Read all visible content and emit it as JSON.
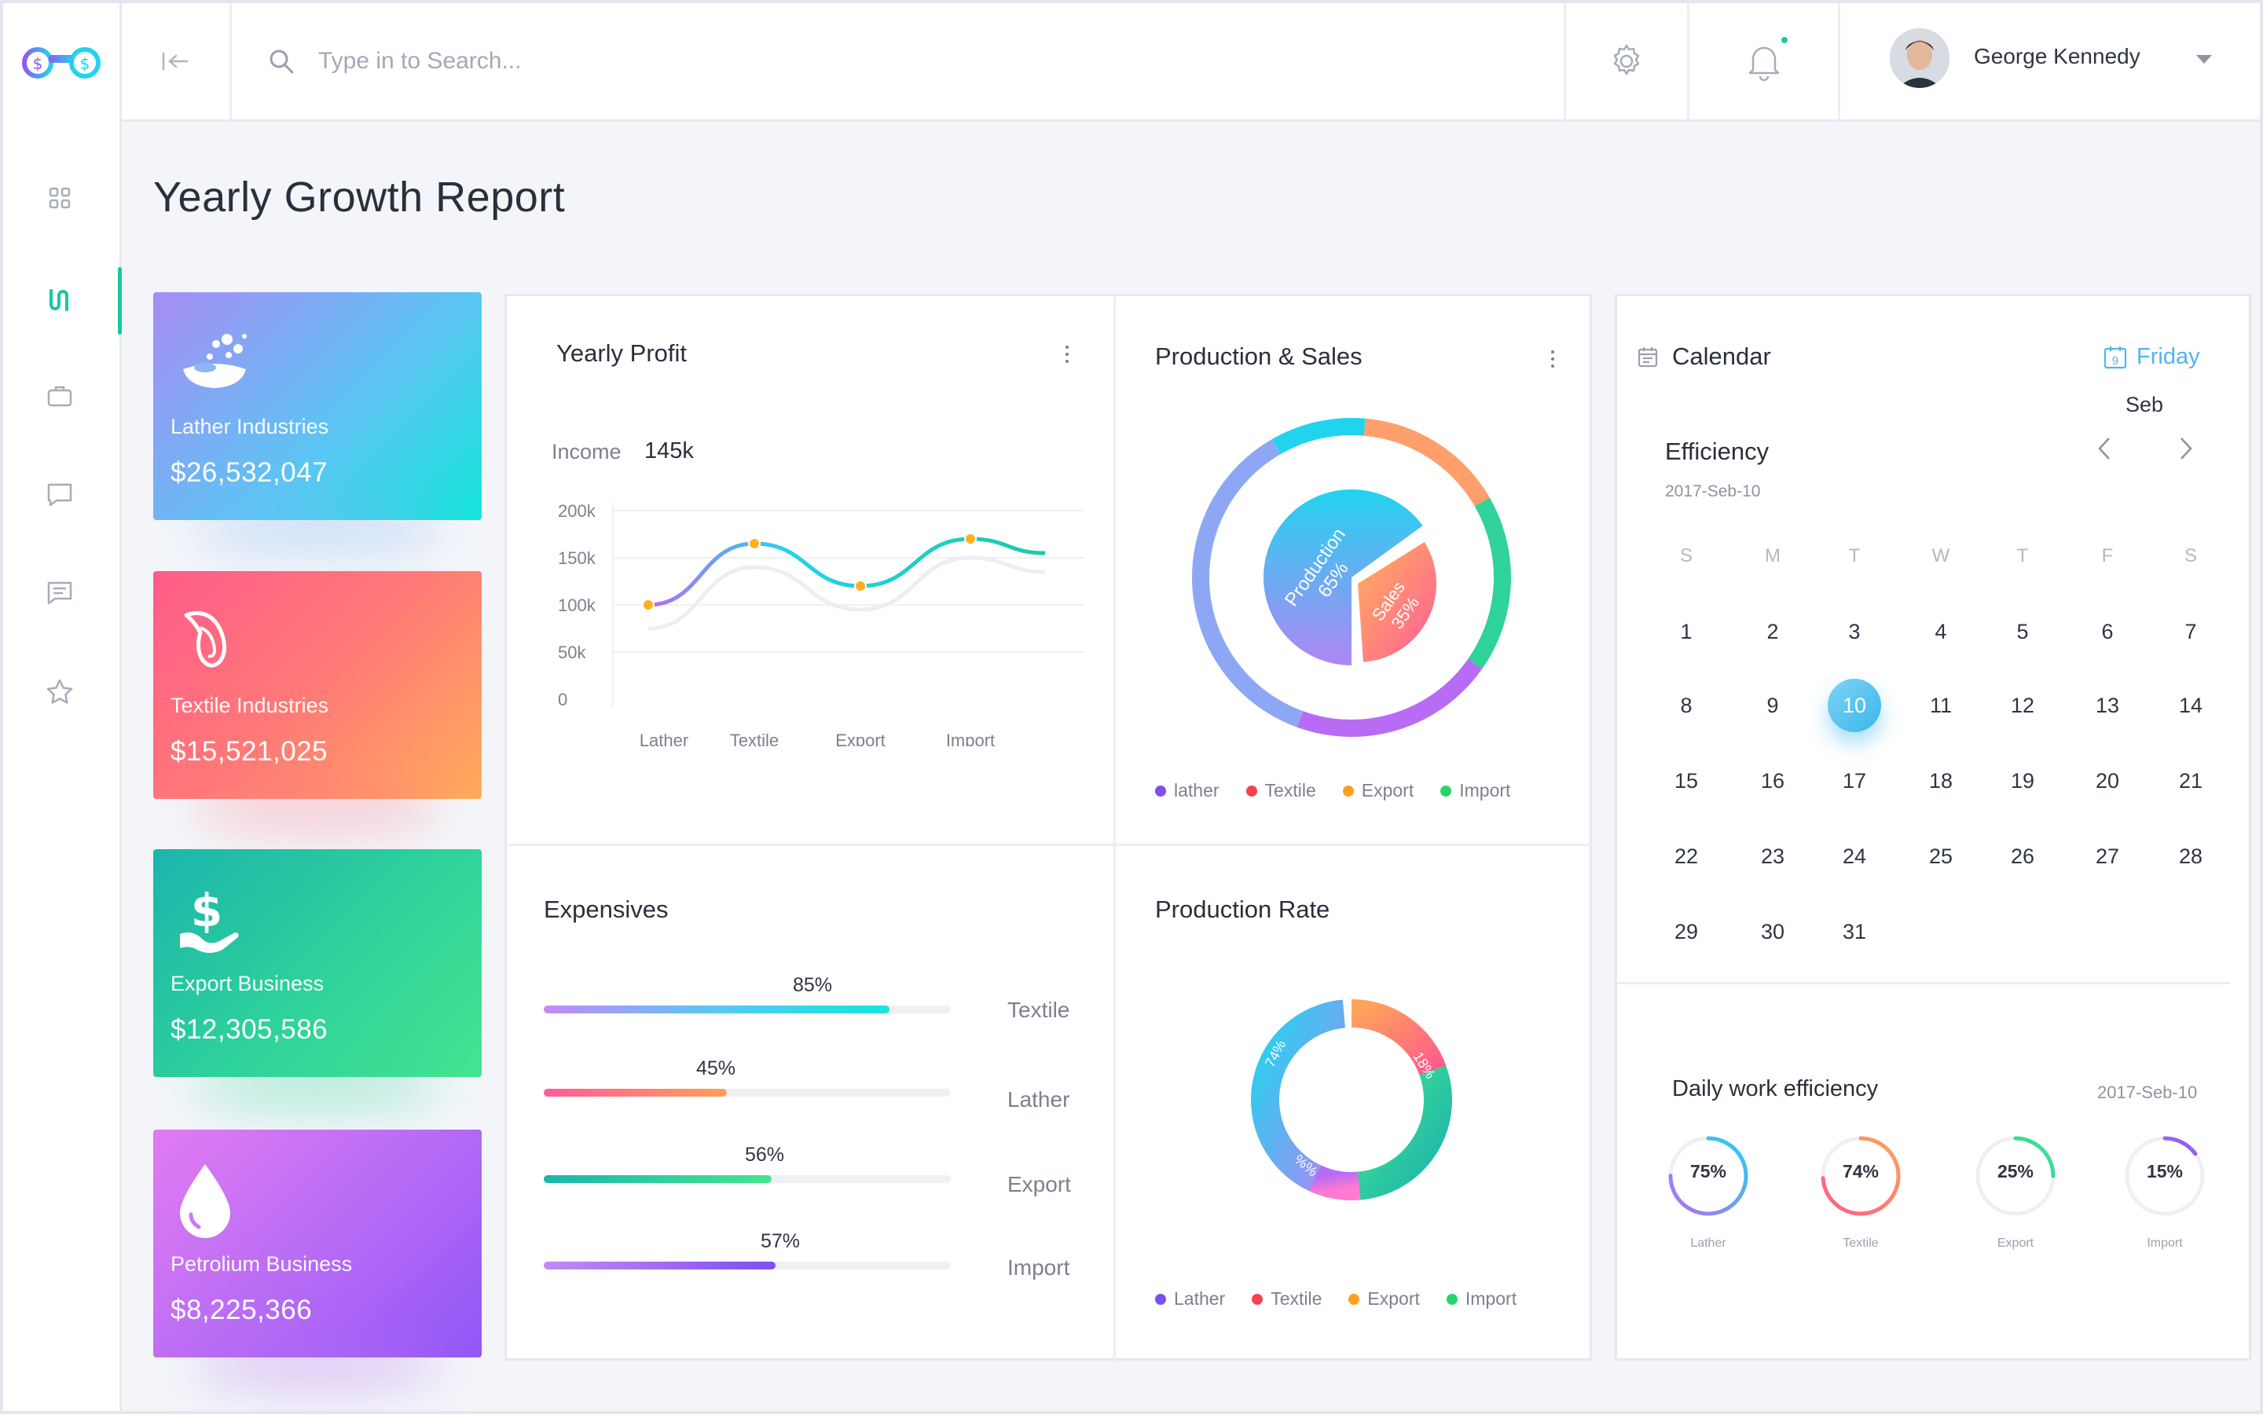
{
  "search": {
    "placeholder": "Type in to Search..."
  },
  "user": {
    "name": "George Kennedy"
  },
  "page": {
    "title": "Yearly Growth Report"
  },
  "stat_cards": [
    {
      "label": "Lather Industries",
      "value": "$26,532,047"
    },
    {
      "label": "Textile Industries",
      "value": "$15,521,025"
    },
    {
      "label": "Export Business",
      "value": "$12,305,586"
    },
    {
      "label": "Petrolium Business",
      "value": "$8,225,366"
    }
  ],
  "yearly_profit": {
    "title": "Yearly Profit",
    "income_label": "Income",
    "income_value": "145k"
  },
  "production_sales": {
    "title": "Production & Sales",
    "production_label": "Production",
    "production_pct": "65%",
    "sales_label": "Sales",
    "sales_pct": "35%",
    "legend": [
      "lather",
      "Textile",
      "Export",
      "Import"
    ]
  },
  "expensives": {
    "title": "Expensives",
    "rows": [
      {
        "label": "Textile",
        "pct": "85%"
      },
      {
        "label": "Lather",
        "pct": "45%"
      },
      {
        "label": "Export",
        "pct": "56%"
      },
      {
        "label": "Import",
        "pct": "57%"
      }
    ]
  },
  "production_rate": {
    "title": "Production Rate",
    "labels": [
      "74%",
      "18%",
      "19%",
      "%%"
    ],
    "legend": [
      "Lather",
      "Textile",
      "Export",
      "Import"
    ]
  },
  "calendar": {
    "title": "Calendar",
    "day_name": "Friday",
    "day_icon_num": "9",
    "month_short": "Seb",
    "efficiency_title": "Efficiency",
    "efficiency_date": "2017-Seb-10",
    "weekdays": [
      "S",
      "M",
      "T",
      "W",
      "T",
      "F",
      "S"
    ],
    "weeks": [
      [
        "1",
        "2",
        "3",
        "4",
        "5",
        "6",
        "7"
      ],
      [
        "8",
        "9",
        "10",
        "11",
        "12",
        "13",
        "14"
      ],
      [
        "15",
        "16",
        "17",
        "18",
        "19",
        "20",
        "21"
      ],
      [
        "22",
        "23",
        "24",
        "25",
        "26",
        "27",
        "28"
      ],
      [
        "29",
        "30",
        "31"
      ]
    ],
    "selected_day": "10"
  },
  "daily_efficiency": {
    "title": "Daily work efficiency",
    "date": "2017-Seb-10",
    "items": [
      {
        "pct": "75%",
        "label": "Lather"
      },
      {
        "pct": "74%",
        "label": "Textile"
      },
      {
        "pct": "25%",
        "label": "Export"
      },
      {
        "pct": "15%",
        "label": "Import"
      }
    ]
  },
  "colors": {
    "accent": "#19c8a0",
    "lather": "#7b4ff0",
    "textile": "#f5424e",
    "export": "#ff9f1c",
    "import": "#27d46b"
  },
  "chart_data": [
    {
      "type": "line",
      "title": "Yearly Profit",
      "categories": [
        "Lather",
        "Textile",
        "Export",
        "Import"
      ],
      "ylim": [
        0,
        200000
      ],
      "yticks": [
        "200k",
        "150k",
        "100k",
        "50k",
        "0"
      ],
      "series": [
        {
          "values": [
            100000,
            165000,
            120000,
            170000
          ]
        },
        {
          "values": [
            75000,
            140000,
            95000,
            150000
          ]
        }
      ]
    },
    {
      "type": "pie",
      "title": "Production & Sales",
      "values": [
        65,
        35
      ],
      "labels": [
        "Production",
        "Sales"
      ]
    },
    {
      "type": "bar",
      "title": "Expensives",
      "categories": [
        "Textile",
        "Lather",
        "Export",
        "Import"
      ],
      "values": [
        85,
        45,
        56,
        57
      ]
    },
    {
      "type": "pie",
      "title": "Production Rate",
      "values": [
        74,
        18,
        19
      ]
    }
  ]
}
